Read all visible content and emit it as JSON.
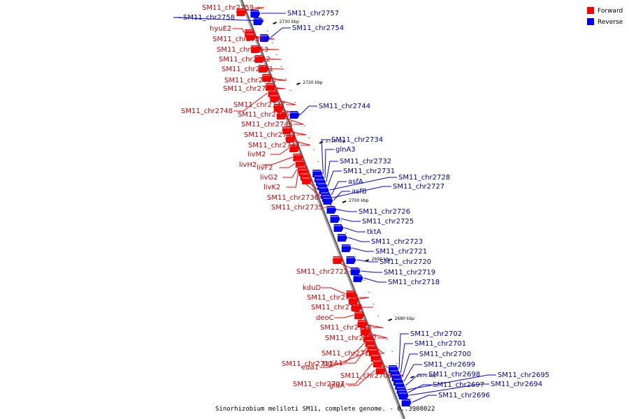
{
  "caption": "Sinorhizobium meliloti SM11, complete genome. - 0..3908022",
  "legend": [
    {
      "label": "Forward",
      "color": "#ff0000"
    },
    {
      "label": "Reverse",
      "color": "#0000ff"
    }
  ],
  "colors": {
    "forward": "#ff0000",
    "reverse": "#0000ff",
    "forward_text": "#cc0000",
    "reverse_text": "#0000aa",
    "backbone": "#999999"
  },
  "ticks": [
    "2730 kbp",
    "2720 kbp",
    "2710 kbp",
    "2700 kbp",
    "2690 kbp",
    "2680 kbp",
    "2670 kbp"
  ],
  "forward_genes": [
    "SM11_chr2759",
    "hyuE2",
    "SM11_chr2755",
    "SM11_chr2753",
    "SM11_chr2752",
    "SM11_chr2751",
    "SM11_chr2750",
    "SM11_chr2749",
    "SM11_chr2748",
    "SM11_chr2747",
    "SM11_chr2746",
    "SM11_chr2745",
    "SM11_chr2743",
    "SM11_chr2742",
    "livM2",
    "livH2",
    "livF2",
    "livG2",
    "livK2",
    "SM11_chr2736",
    "SM11_chr2735",
    "SM11_chr2722",
    "kduD",
    "SM11_chr2716",
    "SM11_chr2715",
    "deoC",
    "SM11_chr2713",
    "SM11_chr2712",
    "SM11_chr2710",
    "SM11_chr2711",
    "pgiA1",
    "eda1",
    "SM11_chr2706",
    "SM11_chr2707",
    "gldA"
  ],
  "reverse_genes": [
    "SM11_chr2758",
    "SM11_chr2757",
    "SM11_chr2754",
    "SM11_chr2744",
    "SM11_chr2734",
    "glnA3",
    "SM11_chr2732",
    "SM11_chr2731",
    "SM11_chr2728",
    "asfA",
    "SM11_chr2727",
    "asfB",
    "SM11_chr2726",
    "SM11_chr2725",
    "tktA",
    "SM11_chr2723",
    "SM11_chr2721",
    "SM11_chr2720",
    "SM11_chr2719",
    "SM11_chr2718",
    "SM11_chr2702",
    "SM11_chr2701",
    "SM11_chr2700",
    "SM11_chr2699",
    "SM11_chr2698",
    "SM11_chr2695",
    "SM11_chr2697",
    "SM11_chr2694",
    "SM11_chr2696"
  ]
}
